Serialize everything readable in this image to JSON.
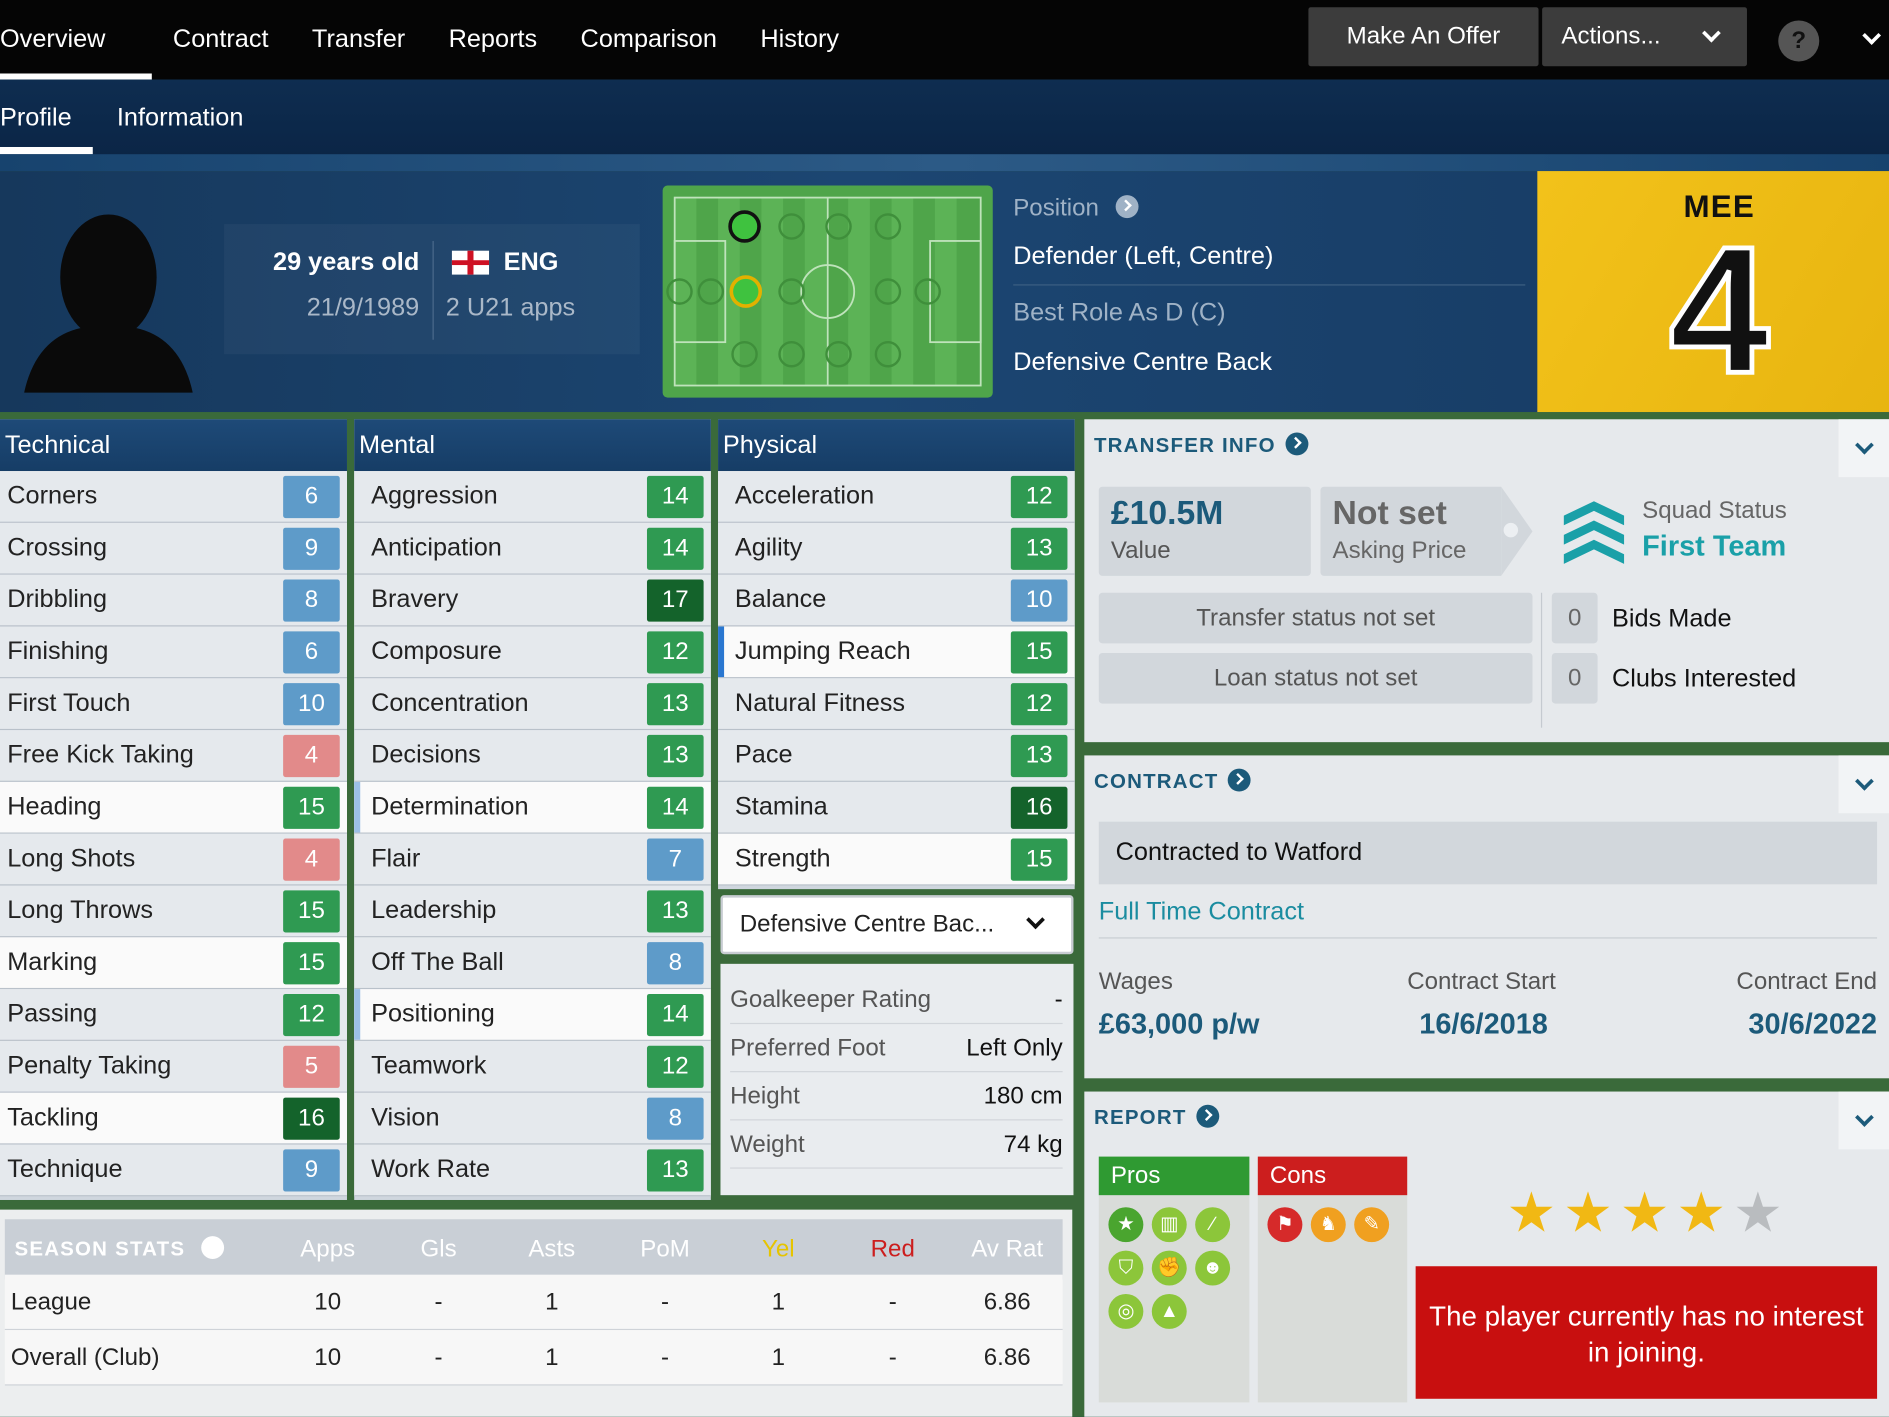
{
  "nav": {
    "tabs": [
      "Overview",
      "Contract",
      "Transfer",
      "Reports",
      "Comparison",
      "History"
    ],
    "make_offer": "Make An Offer",
    "actions": "Actions...",
    "help": "?"
  },
  "subnav": {
    "tabs": [
      "Profile",
      "Information"
    ]
  },
  "player": {
    "age": "29 years old",
    "dob": "21/9/1989",
    "nation": "ENG",
    "u21": "2 U21 apps",
    "shirt_name": "MEE",
    "shirt_number": "4"
  },
  "position": {
    "label": "Position",
    "value": "Defender (Left, Centre)",
    "best_role_label": "Best Role As D (C)",
    "best_role": "Defensive Centre Back"
  },
  "technical": {
    "title": "Technical",
    "items": [
      {
        "n": "Corners",
        "v": "6",
        "c": "blue"
      },
      {
        "n": "Crossing",
        "v": "9",
        "c": "blue"
      },
      {
        "n": "Dribbling",
        "v": "8",
        "c": "blue"
      },
      {
        "n": "Finishing",
        "v": "6",
        "c": "blue"
      },
      {
        "n": "First Touch",
        "v": "10",
        "c": "blue"
      },
      {
        "n": "Free Kick Taking",
        "v": "4",
        "c": "pink"
      },
      {
        "n": "Heading",
        "v": "15",
        "c": "green",
        "hl": true
      },
      {
        "n": "Long Shots",
        "v": "4",
        "c": "pink"
      },
      {
        "n": "Long Throws",
        "v": "15",
        "c": "green"
      },
      {
        "n": "Marking",
        "v": "15",
        "c": "green",
        "hl": true
      },
      {
        "n": "Passing",
        "v": "12",
        "c": "green"
      },
      {
        "n": "Penalty Taking",
        "v": "5",
        "c": "pink"
      },
      {
        "n": "Tackling",
        "v": "16",
        "c": "dgreen",
        "hl": true
      },
      {
        "n": "Technique",
        "v": "9",
        "c": "blue"
      }
    ]
  },
  "mental": {
    "title": "Mental",
    "items": [
      {
        "n": "Aggression",
        "v": "14",
        "c": "green"
      },
      {
        "n": "Anticipation",
        "v": "14",
        "c": "green"
      },
      {
        "n": "Bravery",
        "v": "17",
        "c": "dgreen"
      },
      {
        "n": "Composure",
        "v": "12",
        "c": "green"
      },
      {
        "n": "Concentration",
        "v": "13",
        "c": "green"
      },
      {
        "n": "Decisions",
        "v": "13",
        "c": "green"
      },
      {
        "n": "Determination",
        "v": "14",
        "c": "green",
        "hl": true,
        "mark": 1
      },
      {
        "n": "Flair",
        "v": "7",
        "c": "blue"
      },
      {
        "n": "Leadership",
        "v": "13",
        "c": "green"
      },
      {
        "n": "Off The Ball",
        "v": "8",
        "c": "blue"
      },
      {
        "n": "Positioning",
        "v": "14",
        "c": "green",
        "hl": true,
        "mark": 1
      },
      {
        "n": "Teamwork",
        "v": "12",
        "c": "green"
      },
      {
        "n": "Vision",
        "v": "8",
        "c": "blue"
      },
      {
        "n": "Work Rate",
        "v": "13",
        "c": "green"
      }
    ]
  },
  "physical": {
    "title": "Physical",
    "items": [
      {
        "n": "Acceleration",
        "v": "12",
        "c": "green"
      },
      {
        "n": "Agility",
        "v": "13",
        "c": "green"
      },
      {
        "n": "Balance",
        "v": "10",
        "c": "blue"
      },
      {
        "n": "Jumping Reach",
        "v": "15",
        "c": "green",
        "hl": true,
        "mark": 2
      },
      {
        "n": "Natural Fitness",
        "v": "12",
        "c": "green"
      },
      {
        "n": "Pace",
        "v": "13",
        "c": "green"
      },
      {
        "n": "Stamina",
        "v": "16",
        "c": "dgreen"
      },
      {
        "n": "Strength",
        "v": "15",
        "c": "green",
        "hl": true
      }
    ]
  },
  "role_select": "Defensive Centre Bac...",
  "phys_info": [
    {
      "k": "Goalkeeper Rating",
      "v": "-"
    },
    {
      "k": "Preferred Foot",
      "v": "Left Only"
    },
    {
      "k": "Height",
      "v": "180 cm"
    },
    {
      "k": "Weight",
      "v": "74 kg"
    }
  ],
  "season": {
    "title": "SEASON STATS",
    "cols": [
      "Apps",
      "Gls",
      "Asts",
      "PoM",
      "Yel",
      "Red",
      "Av Rat"
    ],
    "rows": [
      {
        "label": "League",
        "vals": [
          "10",
          "-",
          "1",
          "-",
          "1",
          "-",
          "6.86"
        ]
      },
      {
        "label": "Overall (Club)",
        "vals": [
          "10",
          "-",
          "1",
          "-",
          "1",
          "-",
          "6.86"
        ]
      }
    ]
  },
  "transfer": {
    "title": "TRANSFER INFO",
    "value": "£10.5M",
    "value_label": "Value",
    "asking": "Not set",
    "asking_label": "Asking Price",
    "squad_label": "Squad Status",
    "squad": "First Team",
    "transfer_status": "Transfer status not set",
    "loan_status": "Loan status not set",
    "bids": "0",
    "bids_label": "Bids Made",
    "clubs": "0",
    "clubs_label": "Clubs Interested"
  },
  "contract": {
    "title": "CONTRACT",
    "club": "Contracted to Watford",
    "type": "Full Time Contract",
    "wages_label": "Wages",
    "wages": "£63,000 p/w",
    "start_label": "Contract Start",
    "start": "16/6/2018",
    "end_label": "Contract End",
    "end": "30/6/2022"
  },
  "report": {
    "title": "REPORT",
    "pros": "Pros",
    "cons": "Cons",
    "stars": 4,
    "max_stars": 5,
    "interest": "The player currently has no interest in joining."
  },
  "colors": {
    "accent": "#1c5a7a",
    "value_green": "#2f9a52",
    "value_dark": "#14632b",
    "value_blue": "#5e9bc9",
    "value_pink": "#e28a8a",
    "interest_red": "#c80f0f",
    "shirt_yellow": "#f2c21a"
  }
}
